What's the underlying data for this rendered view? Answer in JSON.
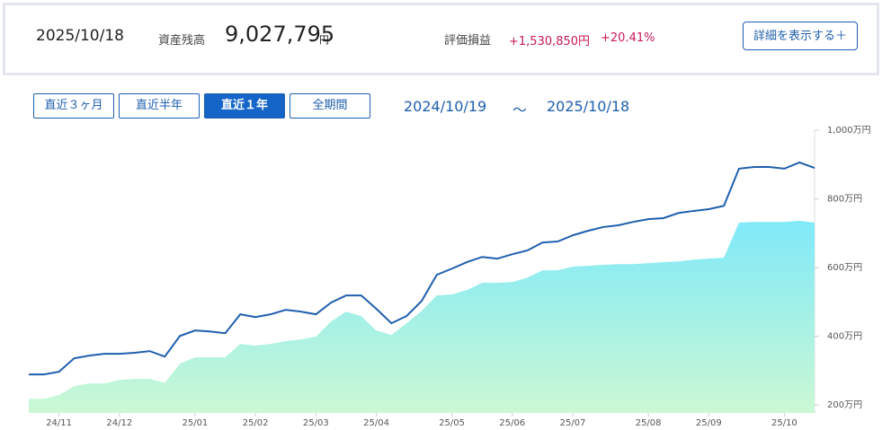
{
  "header": {
    "date": "2025/10/18",
    "balance_label": "資産残高",
    "balance": "9,027,795",
    "balance_unit": "円",
    "pl_label": "評価損益",
    "pl_amount": "+1,530,850円",
    "pl_rate": "+20.41%",
    "detail_button": "詳細を表示する＋"
  },
  "tabs": [
    "直近３ヶ月",
    "直近半年",
    "直近１年",
    "全期間"
  ],
  "active_tab": 2,
  "range": {
    "start": "2024/10/19",
    "separator": "～",
    "end": "2025/10/18"
  },
  "chart_data": {
    "type": "line",
    "categories": [
      null,
      null,
      "24/11",
      null,
      null,
      null,
      "24/12",
      null,
      null,
      null,
      null,
      "25/01",
      null,
      null,
      null,
      "25/02",
      null,
      null,
      null,
      "25/03",
      null,
      null,
      null,
      "25/04",
      null,
      null,
      null,
      null,
      "25/05",
      null,
      null,
      null,
      "25/06",
      null,
      null,
      null,
      "25/07",
      null,
      null,
      null,
      null,
      "25/08",
      null,
      null,
      null,
      "25/09",
      null,
      null,
      null,
      null,
      "25/10",
      null,
      null
    ],
    "series": [
      {
        "color": "#1f5fae",
        "values": [
          289,
          289,
          297,
          336,
          344,
          349,
          349,
          352,
          357,
          341,
          401,
          417,
          414,
          409,
          464,
          456,
          464,
          477,
          472,
          464,
          498,
          519,
          519,
          480,
          438,
          459,
          503,
          579,
          597,
          616,
          631,
          626,
          639,
          650,
          673,
          676,
          694,
          707,
          718,
          723,
          733,
          741,
          744,
          759,
          765,
          770,
          780,
          888,
          893,
          893,
          888,
          906,
          890
        ]
      },
      {
        "type": "area",
        "color": "#7fe9f9",
        "values": [
          218,
          218,
          229,
          255,
          263,
          263,
          273,
          276,
          276,
          265,
          320,
          339,
          339,
          339,
          378,
          373,
          378,
          386,
          391,
          399,
          443,
          472,
          459,
          417,
          404,
          438,
          474,
          519,
          522,
          535,
          556,
          556,
          558,
          571,
          592,
          592,
          603,
          605,
          608,
          610,
          610,
          613,
          616,
          618,
          623,
          626,
          629,
          731,
          733,
          733,
          733,
          736,
          731
        ]
      }
    ],
    "ylim": [
      177,
      1000
    ],
    "yticks": [
      {
        "value": 200,
        "label": "200万円"
      },
      {
        "value": 400,
        "label": "400万円"
      },
      {
        "value": 600,
        "label": "600万円"
      },
      {
        "value": 800,
        "label": "800万円"
      },
      {
        "value": 1000,
        "label": "1,000万円"
      }
    ]
  }
}
